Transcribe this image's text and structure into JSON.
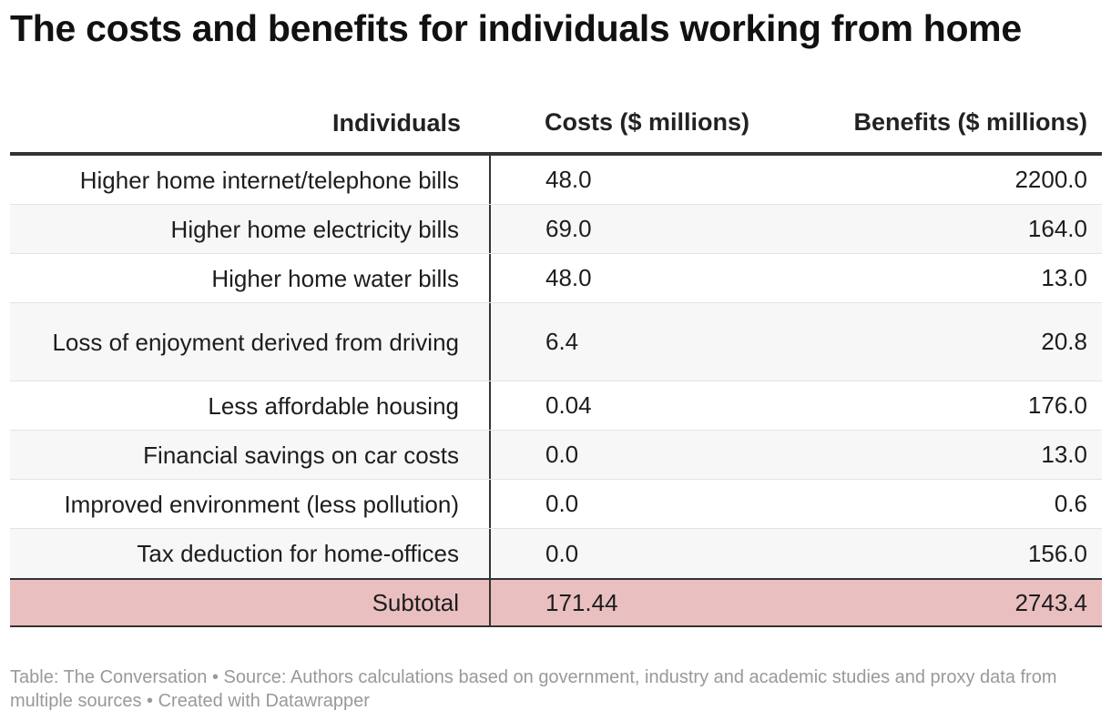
{
  "title": "The costs and benefits for individuals working from home",
  "headers": {
    "label": "Individuals",
    "costs": "Costs ($ millions)",
    "benefits": "Benefits ($ millions)"
  },
  "rows": [
    {
      "label": "Higher home internet/telephone bills",
      "costs": "48.0",
      "benefits": "2200.0"
    },
    {
      "label": "Higher home electricity bills",
      "costs": "69.0",
      "benefits": "164.0"
    },
    {
      "label": "Higher home water bills",
      "costs": "48.0",
      "benefits": "13.0"
    },
    {
      "label": "Loss of enjoyment derived from driving",
      "costs": "6.4",
      "benefits": "20.8"
    },
    {
      "label": "Less affordable housing",
      "costs": "0.04",
      "benefits": "176.0"
    },
    {
      "label": "Financial savings on car costs",
      "costs": "0.0",
      "benefits": "13.0"
    },
    {
      "label": "Improved environment (less pollution)",
      "costs": "0.0",
      "benefits": "0.6"
    },
    {
      "label": "Tax deduction for home-offices",
      "costs": "0.0",
      "benefits": "156.0"
    }
  ],
  "subtotal": {
    "label": "Subtotal",
    "costs": "171.44",
    "benefits": "2743.4"
  },
  "footer": "Table: The Conversation • Source: Authors calculations based on government, industry and academic studies and proxy data from multiple sources • Created with Datawrapper",
  "colors": {
    "subtotal_bg": "#eabfbf",
    "alt_row_bg": "#f7f7f7",
    "rule": "#333333"
  },
  "chart_data": {
    "type": "table",
    "title": "The costs and benefits for individuals working from home",
    "columns": [
      "Individuals",
      "Costs ($ millions)",
      "Benefits ($ millions)"
    ],
    "categories": [
      "Higher home internet/telephone bills",
      "Higher home electricity bills",
      "Higher home water bills",
      "Loss of enjoyment derived from driving",
      "Less affordable housing",
      "Financial savings on car costs",
      "Improved environment (less pollution)",
      "Tax deduction for home-offices"
    ],
    "series": [
      {
        "name": "Costs ($ millions)",
        "values": [
          48.0,
          69.0,
          48.0,
          6.4,
          0.04,
          0.0,
          0.0,
          0.0
        ]
      },
      {
        "name": "Benefits ($ millions)",
        "values": [
          2200.0,
          164.0,
          13.0,
          20.8,
          176.0,
          13.0,
          0.6,
          156.0
        ]
      }
    ],
    "subtotal": {
      "Costs ($ millions)": 171.44,
      "Benefits ($ millions)": 2743.4
    }
  }
}
